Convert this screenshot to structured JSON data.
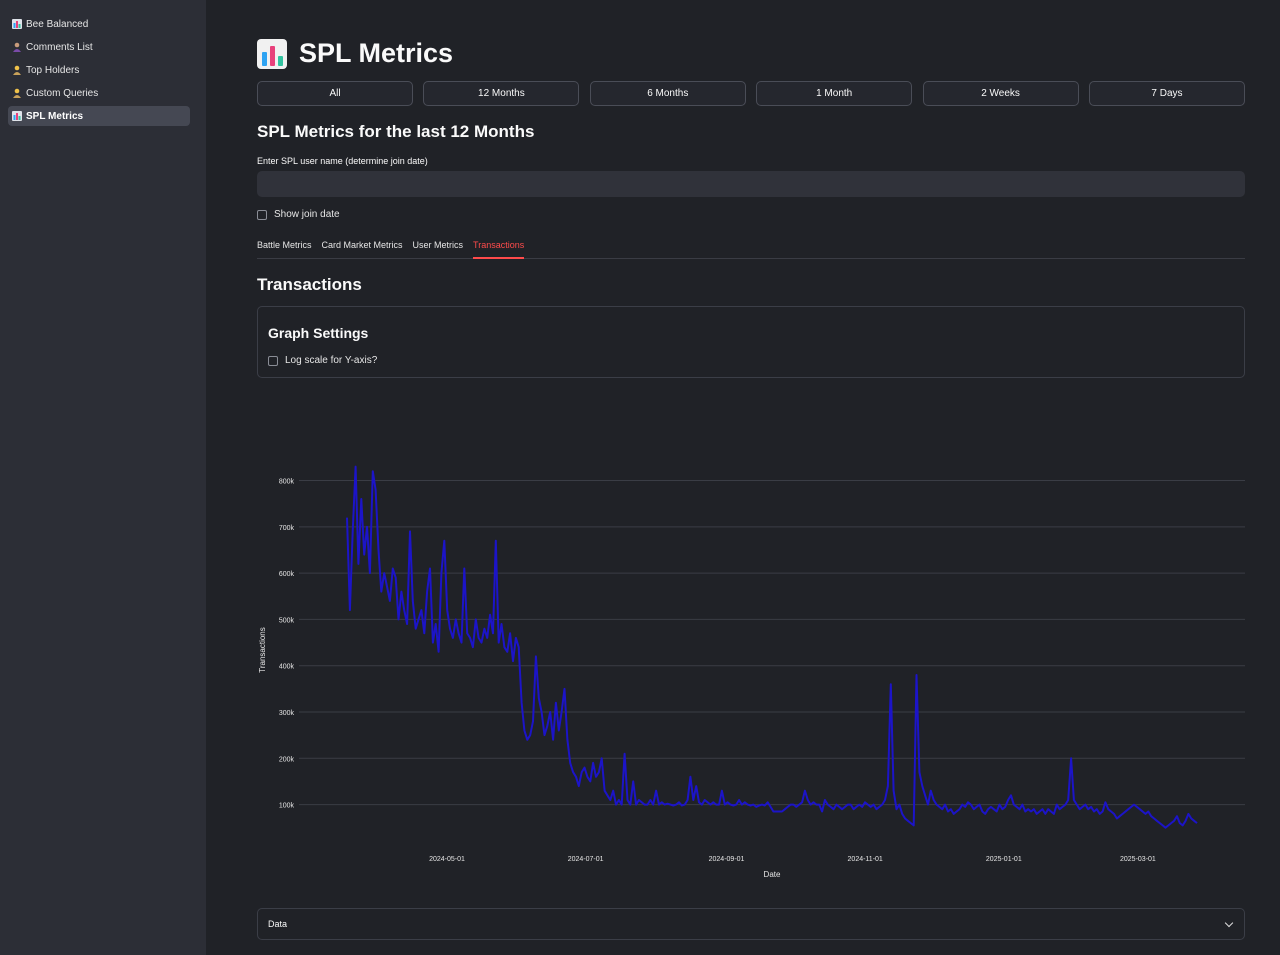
{
  "sidebar": {
    "items": [
      {
        "label": "Bee Balanced",
        "icon": "bar-chart-icon"
      },
      {
        "label": "Comments List",
        "icon": "person-icon"
      },
      {
        "label": "Top Holders",
        "icon": "person-icon"
      },
      {
        "label": "Custom Queries",
        "icon": "person-icon"
      },
      {
        "label": "SPL Metrics",
        "icon": "bar-chart-icon"
      }
    ],
    "active": "SPL Metrics"
  },
  "header": {
    "title": "SPL Metrics",
    "icon": "bar-chart-icon"
  },
  "range_buttons": [
    "All",
    "12 Months",
    "6 Months",
    "1 Month",
    "2 Weeks",
    "7 Days"
  ],
  "subtitle": "SPL Metrics for the last 12 Months",
  "username": {
    "label": "Enter SPL user name (determine join date)",
    "value": "",
    "placeholder": ""
  },
  "show_join_date": {
    "label": "Show join date",
    "checked": false
  },
  "tabs": [
    "Battle Metrics",
    "Card Market Metrics",
    "User Metrics",
    "Transactions"
  ],
  "active_tab": "Transactions",
  "section_title": "Transactions",
  "graph_settings": {
    "title": "Graph Settings",
    "log_scale": {
      "label": "Log scale for Y-axis?",
      "checked": false
    }
  },
  "expander": {
    "label": "Data",
    "icon": "chevron-down-icon"
  },
  "colors": {
    "line": "#1c14c8",
    "accent": "#ff4b4b",
    "background": "#202227",
    "sidebar": "#2c2e36"
  },
  "chart_data": {
    "type": "line",
    "title": "",
    "xlabel": "Date",
    "ylabel": "Transactions",
    "x_start": "2024-03-18",
    "x_end": "2025-03-27",
    "x_ticks": [
      "2024-05-01",
      "2024-07-01",
      "2024-09-01",
      "2024-11-01",
      "2025-01-01",
      "2025-03-01"
    ],
    "y_ticks": [
      "100k",
      "200k",
      "300k",
      "400k",
      "500k",
      "600k",
      "700k",
      "800k"
    ],
    "ylim": [
      30000,
      840000
    ],
    "grid": true,
    "series": [
      {
        "values": [
          720000,
          520000,
          690000,
          830000,
          620000,
          760000,
          640000,
          700000,
          600000,
          820000,
          780000,
          650000,
          560000,
          600000,
          570000,
          540000,
          610000,
          590000,
          500000,
          560000,
          520000,
          490000,
          690000,
          540000,
          480000,
          500000,
          520000,
          470000,
          560000,
          610000,
          450000,
          490000,
          430000,
          600000,
          670000,
          520000,
          480000,
          460000,
          500000,
          470000,
          450000,
          610000,
          470000,
          460000,
          440000,
          500000,
          460000,
          450000,
          480000,
          460000,
          510000,
          470000,
          670000,
          450000,
          490000,
          440000,
          430000,
          470000,
          410000,
          460000,
          440000,
          320000,
          260000,
          240000,
          250000,
          280000,
          420000,
          330000,
          300000,
          250000,
          270000,
          300000,
          240000,
          320000,
          260000,
          300000,
          350000,
          240000,
          190000,
          170000,
          160000,
          140000,
          170000,
          180000,
          160000,
          150000,
          190000,
          160000,
          170000,
          200000,
          130000,
          120000,
          110000,
          130000,
          100000,
          110000,
          100000,
          210000,
          110000,
          100000,
          150000,
          100000,
          110000,
          105000,
          100000,
          100000,
          110000,
          100000,
          130000,
          100000,
          105000,
          100000,
          102000,
          100000,
          98000,
          100000,
          105000,
          98000,
          100000,
          110000,
          160000,
          110000,
          140000,
          105000,
          100000,
          110000,
          105000,
          100000,
          105000,
          100000,
          100000,
          130000,
          100000,
          105000,
          100000,
          98000,
          100000,
          110000,
          100000,
          105000,
          100000,
          98000,
          100000,
          95000,
          98000,
          100000,
          98000,
          105000,
          95000,
          85000,
          85000,
          85000,
          85000,
          90000,
          95000,
          100000,
          100000,
          95000,
          100000,
          105000,
          130000,
          110000,
          100000,
          105000,
          100000,
          100000,
          85000,
          110000,
          100000,
          95000,
          90000,
          100000,
          95000,
          90000,
          95000,
          100000,
          100000,
          90000,
          95000,
          100000,
          95000,
          105000,
          100000,
          95000,
          100000,
          90000,
          95000,
          100000,
          110000,
          140000,
          360000,
          130000,
          90000,
          100000,
          80000,
          70000,
          65000,
          60000,
          55000,
          380000,
          170000,
          140000,
          120000,
          100000,
          130000,
          110000,
          100000,
          95000,
          90000,
          100000,
          85000,
          90000,
          80000,
          85000,
          90000,
          100000,
          95000,
          105000,
          100000,
          90000,
          95000,
          100000,
          85000,
          80000,
          90000,
          95000,
          90000,
          85000,
          100000,
          90000,
          95000,
          110000,
          120000,
          100000,
          95000,
          90000,
          100000,
          85000,
          90000,
          85000,
          90000,
          80000,
          85000,
          90000,
          80000,
          90000,
          85000,
          80000,
          100000,
          90000,
          95000,
          100000,
          110000,
          200000,
          110000,
          100000,
          90000,
          95000,
          100000,
          90000,
          95000,
          85000,
          90000,
          80000,
          85000,
          105000,
          90000,
          85000,
          80000,
          70000,
          75000,
          80000,
          85000,
          90000,
          95000,
          100000,
          95000,
          90000,
          85000,
          80000,
          85000,
          75000,
          70000,
          65000,
          60000,
          55000,
          50000,
          55000,
          60000,
          65000,
          75000,
          60000,
          55000,
          65000,
          80000,
          70000,
          65000,
          60000
        ]
      }
    ]
  }
}
